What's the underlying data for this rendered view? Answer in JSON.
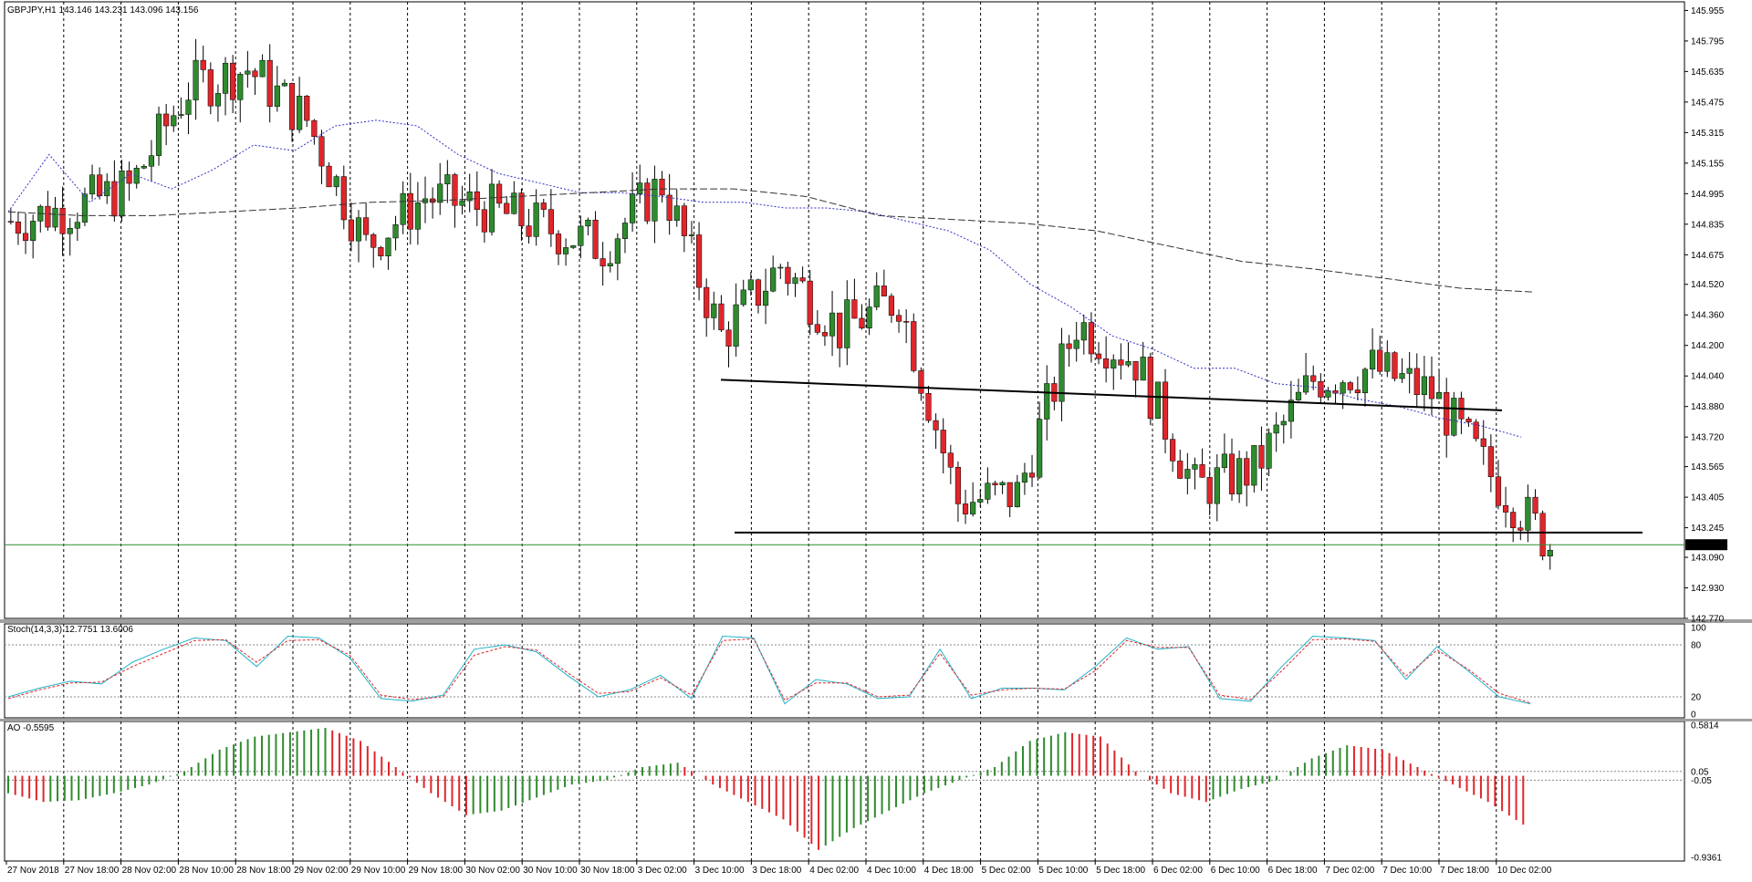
{
  "header": {
    "symbol_info": "GBPJPY,H1",
    "ohlc": "143.146 143.231 143.096 143.156"
  },
  "colors": {
    "bull": "#2e8b2e",
    "bear": "#e0262b",
    "wick": "#000000",
    "ma_fast": "#3232c8",
    "ma_slow": "#333333",
    "stoch_main": "#20b2c8",
    "stoch_signal": "#e0262b",
    "price_line": "#2e8b2e",
    "grid": "#000000",
    "background": "#ffffff"
  },
  "chart_data": [
    {
      "type": "candlestick",
      "name": "GBPJPY,H1",
      "ylim": [
        142.77,
        146.0
      ],
      "y_ticks": [
        "145.955",
        "145.795",
        "145.635",
        "145.475",
        "145.315",
        "145.155",
        "144.995",
        "144.835",
        "144.675",
        "144.520",
        "144.360",
        "144.200",
        "144.040",
        "143.880",
        "143.720",
        "143.565",
        "143.405",
        "143.245",
        "143.090",
        "142.930",
        "142.770"
      ],
      "x_ticks": [
        "27 Nov 2018",
        "27 Nov 18:00",
        "28 Nov 02:00",
        "28 Nov 10:00",
        "28 Nov 18:00",
        "29 Nov 02:00",
        "29 Nov 10:00",
        "29 Nov 18:00",
        "30 Nov 02:00",
        "30 Nov 10:00",
        "30 Nov 18:00",
        "3 Dec 02:00",
        "3 Dec 10:00",
        "3 Dec 18:00",
        "4 Dec 02:00",
        "4 Dec 10:00",
        "4 Dec 18:00",
        "5 Dec 02:00",
        "5 Dec 10:00",
        "5 Dec 18:00",
        "6 Dec 02:00",
        "6 Dec 10:00",
        "6 Dec 18:00",
        "7 Dec 02:00",
        "7 Dec 10:00",
        "7 Dec 18:00",
        "10 Dec 02:00"
      ],
      "current_price": "143.156",
      "key_closes": [
        [
          "27 Nov 2018",
          144.85
        ],
        [
          "27 Nov 18:00",
          144.92
        ],
        [
          "28 Nov 02:00",
          145.02
        ],
        [
          "28 Nov 10:00",
          145.55
        ],
        [
          "28 Nov 18:00",
          145.65
        ],
        [
          "29 Nov 02:00",
          145.38
        ],
        [
          "29 Nov 10:00",
          144.72
        ],
        [
          "29 Nov 18:00",
          144.98
        ],
        [
          "30 Nov 02:00",
          144.92
        ],
        [
          "30 Nov 10:00",
          144.82
        ],
        [
          "30 Nov 18:00",
          144.72
        ],
        [
          "3 Dec 02:00",
          145.05
        ],
        [
          "3 Dec 10:00",
          144.25
        ],
        [
          "3 Dec 18:00",
          144.62
        ],
        [
          "4 Dec 02:00",
          144.28
        ],
        [
          "4 Dec 10:00",
          144.45
        ],
        [
          "4 Dec 18:00",
          143.38
        ],
        [
          "5 Dec 02:00",
          143.42
        ],
        [
          "5 Dec 10:00",
          144.32
        ],
        [
          "5 Dec 18:00",
          144.12
        ],
        [
          "6 Dec 02:00",
          143.45
        ],
        [
          "6 Dec 10:00",
          143.55
        ],
        [
          "6 Dec 18:00",
          144.02
        ],
        [
          "7 Dec 02:00",
          144.08
        ],
        [
          "7 Dec 10:00",
          143.95
        ],
        [
          "7 Dec 18:00",
          143.52
        ],
        [
          "10 Dec 02:00",
          143.156
        ]
      ],
      "moving_averages": [
        {
          "style": "dotted-blue",
          "points": [
            [
              144.9,
              145.2
            ],
            [
              144.95,
              145.1
            ],
            [
              145.02,
              145.12
            ],
            [
              145.25,
              145.22
            ],
            [
              145.35,
              145.38
            ],
            [
              145.35,
              145.2
            ],
            [
              145.1,
              145.05
            ],
            [
              145.0,
              145.0
            ],
            [
              144.98,
              144.95
            ],
            [
              144.95,
              144.92
            ],
            [
              144.92,
              144.9
            ],
            [
              144.85,
              144.8
            ],
            [
              144.7,
              144.52
            ],
            [
              144.4,
              144.25
            ],
            [
              144.18,
              144.08
            ],
            [
              144.08,
              144.0
            ],
            [
              143.98,
              143.92
            ],
            [
              143.88,
              143.82
            ],
            [
              143.78,
              143.72
            ]
          ]
        },
        {
          "style": "dashed-black",
          "points": [
            [
              144.9,
              144.88
            ],
            [
              144.88,
              144.9
            ],
            [
              144.92,
              144.95
            ],
            [
              144.96,
              144.98
            ],
            [
              145.0,
              145.02
            ],
            [
              145.02,
              144.98
            ],
            [
              144.88,
              144.86
            ],
            [
              144.84,
              144.8
            ],
            [
              144.72,
              144.64
            ],
            [
              144.6,
              144.55
            ],
            [
              144.5,
              144.48
            ]
          ]
        }
      ],
      "annotations": [
        "horizontal line near 144.02-143.86 (neckline)",
        "horizontal line at 143.22 (support)"
      ]
    },
    {
      "type": "line",
      "name": "Stoch(14,3,3) 12.7751 13.6006",
      "label": "Stoch(14,3,3) 12.7751 13.6006",
      "ylim": [
        0,
        100
      ],
      "levels": [
        "100",
        "80",
        "20",
        "0"
      ],
      "series": [
        {
          "name": "main",
          "values": [
            20,
            30,
            38,
            35,
            60,
            75,
            88,
            85,
            55,
            90,
            88,
            65,
            18,
            15,
            22,
            75,
            80,
            72,
            45,
            20,
            28,
            45,
            18,
            90,
            88,
            12,
            40,
            35,
            18,
            20,
            75,
            18,
            30,
            30,
            28,
            55,
            88,
            75,
            78,
            18,
            15,
            55,
            90,
            88,
            85,
            40,
            78,
            50,
            20,
            12
          ]
        },
        {
          "name": "signal",
          "values": [
            18,
            28,
            36,
            37,
            55,
            70,
            85,
            86,
            60,
            85,
            86,
            68,
            22,
            17,
            20,
            68,
            78,
            74,
            48,
            24,
            26,
            42,
            22,
            85,
            87,
            16,
            36,
            36,
            20,
            22,
            70,
            22,
            28,
            30,
            29,
            50,
            85,
            77,
            77,
            22,
            17,
            50,
            86,
            87,
            84,
            44,
            74,
            52,
            24,
            13
          ]
        }
      ]
    },
    {
      "type": "bar",
      "name": "AO -0.5595",
      "label": "AO -0.5595",
      "ylim": [
        -0.9361,
        0.5814
      ],
      "levels": [
        "0.5814",
        "0.05",
        "-0.05",
        "-0.9361"
      ],
      "values": [
        -0.2,
        -0.3,
        -0.28,
        -0.2,
        -0.1,
        0.05,
        0.3,
        0.45,
        0.5,
        0.55,
        0.4,
        0.1,
        -0.2,
        -0.45,
        -0.4,
        -0.25,
        -0.1,
        -0.05,
        0.1,
        0.15,
        -0.1,
        -0.3,
        -0.5,
        -0.85,
        -0.6,
        -0.4,
        -0.2,
        -0.05,
        0.1,
        0.4,
        0.5,
        0.45,
        0.05,
        -0.2,
        -0.3,
        -0.15,
        -0.05,
        0.2,
        0.35,
        0.3,
        0.1,
        -0.1,
        -0.3,
        -0.56
      ]
    }
  ]
}
